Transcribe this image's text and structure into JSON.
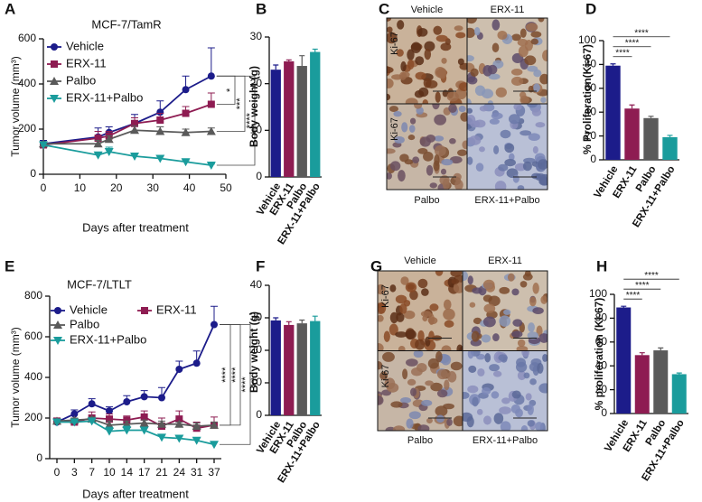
{
  "chart_data": [
    {
      "panel_label": "A",
      "type": "line",
      "title": "MCF-7/TamR",
      "x_label": "Days after treatment",
      "y_label": "Tumor volume (mm³)",
      "x": [
        0,
        15,
        18,
        25,
        32,
        39,
        46
      ],
      "xlim": [
        0,
        50
      ],
      "xticks": [
        0,
        10,
        20,
        30,
        40,
        50
      ],
      "ylim": [
        0,
        600
      ],
      "yticks": [
        0,
        200,
        400,
        600
      ],
      "series": [
        {
          "name": "Vehicle",
          "color": "#1c1c8a",
          "marker": "circle",
          "values": [
            135,
            165,
            185,
            225,
            275,
            375,
            435
          ],
          "errors": [
            15,
            40,
            25,
            40,
            50,
            60,
            125
          ]
        },
        {
          "name": "ERX-11",
          "color": "#8e1c52",
          "marker": "square",
          "values": [
            130,
            160,
            170,
            225,
            240,
            270,
            310
          ],
          "errors": [
            10,
            30,
            20,
            25,
            30,
            30,
            50
          ]
        },
        {
          "name": "Palbo",
          "color": "#5a5a5a",
          "marker": "triangle-up",
          "values": [
            135,
            135,
            155,
            195,
            190,
            185,
            190
          ],
          "errors": [
            10,
            15,
            15,
            20,
            20,
            15,
            15
          ]
        },
        {
          "name": "ERX-11+Palbo",
          "color": "#1a9c9c",
          "marker": "triangle-down",
          "values": [
            130,
            85,
            100,
            80,
            70,
            55,
            40
          ],
          "errors": [
            10,
            10,
            20,
            10,
            10,
            5,
            5
          ]
        }
      ],
      "significance": [
        "*",
        "***",
        "****"
      ]
    },
    {
      "panel_label": "B",
      "type": "bar",
      "y_label": "Body weight (g)",
      "categories": [
        "Vehicle",
        "ERX-11",
        "Palbo",
        "ERX-11+Palbo"
      ],
      "colors": [
        "#1c1c8a",
        "#8e1c52",
        "#5a5a5a",
        "#1a9c9c"
      ],
      "values": [
        23,
        24.8,
        23.8,
        26.8
      ],
      "errors": [
        1,
        0.3,
        2.2,
        0.6
      ],
      "ylim": [
        0,
        30
      ],
      "yticks": [
        0,
        10,
        20,
        30
      ]
    },
    {
      "panel_label": "D",
      "type": "bar",
      "y_label": "% Proliferation(Ki-67)",
      "categories": [
        "Vehicle",
        "ERX-11",
        "Palbo",
        "ERX-11+Palbo"
      ],
      "colors": [
        "#1c1c8a",
        "#8e1c52",
        "#5a5a5a",
        "#1a9c9c"
      ],
      "values": [
        79,
        43,
        35,
        19
      ],
      "errors": [
        1.5,
        3,
        1.5,
        1.5
      ],
      "ylim": [
        0,
        100
      ],
      "yticks": [
        0,
        20,
        40,
        60,
        80,
        100
      ],
      "significance": [
        "****",
        "****",
        "****"
      ]
    },
    {
      "panel_label": "E",
      "type": "line",
      "title": "MCF-7/LTLT",
      "x_label": "Days after treatment",
      "y_label": "Tumor volume (mm³)",
      "categories": [
        "0",
        "3",
        "7",
        "10",
        "14",
        "17",
        "21",
        "24",
        "31",
        "37"
      ],
      "ylim": [
        0,
        800
      ],
      "yticks": [
        0,
        200,
        400,
        600,
        800
      ],
      "series": [
        {
          "name": "Vehicle",
          "color": "#1c1c8a",
          "marker": "circle",
          "values": [
            180,
            220,
            270,
            235,
            280,
            305,
            300,
            440,
            470,
            660
          ],
          "errors": [
            15,
            20,
            25,
            20,
            30,
            30,
            50,
            40,
            60,
            90
          ]
        },
        {
          "name": "ERX-11",
          "color": "#8e1c52",
          "marker": "square",
          "values": [
            185,
            180,
            200,
            195,
            190,
            205,
            160,
            195,
            150,
            165
          ],
          "errors": [
            15,
            20,
            30,
            25,
            20,
            30,
            40,
            40,
            30,
            40
          ]
        },
        {
          "name": "Palbo",
          "color": "#5a5a5a",
          "marker": "triangle-up",
          "values": [
            185,
            190,
            195,
            165,
            170,
            175,
            170,
            170,
            160,
            165
          ],
          "errors": [
            10,
            10,
            10,
            20,
            15,
            15,
            15,
            10,
            15,
            15
          ]
        },
        {
          "name": "ERX-11+Palbo",
          "color": "#1a9c9c",
          "marker": "triangle-down",
          "values": [
            180,
            180,
            185,
            135,
            140,
            140,
            105,
            100,
            90,
            70
          ],
          "errors": [
            10,
            10,
            15,
            20,
            20,
            15,
            10,
            10,
            10,
            10
          ]
        }
      ],
      "significance": [
        "****",
        "****",
        "****"
      ]
    },
    {
      "panel_label": "F",
      "type": "bar",
      "y_label": "Body weight (g)",
      "categories": [
        "Vehicle",
        "ERX-11",
        "Palbo",
        "ERX-11+Palbo"
      ],
      "colors": [
        "#1c1c8a",
        "#8e1c52",
        "#5a5a5a",
        "#1a9c9c"
      ],
      "values": [
        29.2,
        27.8,
        28.3,
        29
      ],
      "errors": [
        0.8,
        1,
        1,
        1.5
      ],
      "ylim": [
        0,
        40
      ],
      "yticks": [
        0,
        10,
        20,
        30,
        40
      ]
    },
    {
      "panel_label": "H",
      "type": "bar",
      "y_label": "% proliferation (Ki-67)",
      "categories": [
        "Vehicle",
        "ERX-11",
        "Palbo",
        "ERX-11+Palbo"
      ],
      "colors": [
        "#1c1c8a",
        "#8e1c52",
        "#5a5a5a",
        "#1a9c9c"
      ],
      "values": [
        89,
        49,
        53,
        33
      ],
      "errors": [
        1,
        2,
        2,
        1
      ],
      "ylim": [
        0,
        100
      ],
      "yticks": [
        0,
        20,
        40,
        60,
        80,
        100
      ],
      "significance": [
        "****",
        "****",
        "****"
      ]
    }
  ],
  "image_panels": [
    {
      "panel_label": "C",
      "row_labels": [
        "Ki-67",
        "Ki-67"
      ],
      "captions": [
        "Vehicle",
        "ERX-11",
        "Palbo",
        "ERX-11+Palbo"
      ]
    },
    {
      "panel_label": "G",
      "row_labels": [
        "Ki-67",
        "Ki-67"
      ],
      "captions": [
        "Vehicle",
        "ERX-11",
        "Palbo",
        "ERX-11+Palbo"
      ]
    }
  ]
}
